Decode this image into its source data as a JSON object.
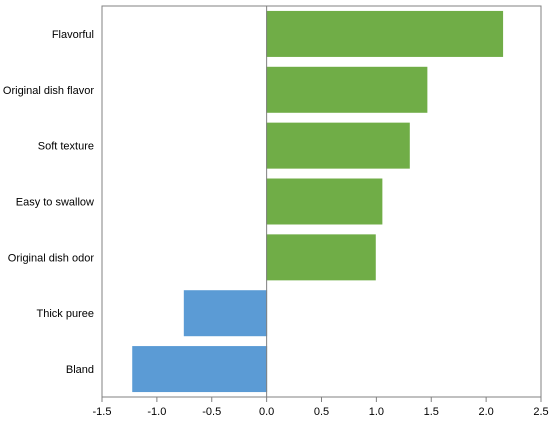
{
  "chart_data": {
    "type": "bar",
    "orientation": "horizontal",
    "title": "",
    "xlabel": "",
    "ylabel": "",
    "categories": [
      "Flavorful",
      "Original dish flavor",
      "Soft texture",
      "Easy to swallow",
      "Original dish odor",
      "Thick puree",
      "Bland"
    ],
    "values": [
      2.15,
      1.46,
      1.3,
      1.05,
      0.99,
      -0.75,
      -1.22
    ],
    "xlim": [
      -1.5,
      2.5
    ],
    "x_ticks": [
      "-1.5",
      "-1.0",
      "-0.5",
      "0.0",
      "0.5",
      "1.0",
      "1.5",
      "2.0",
      "2.5"
    ],
    "grid": false,
    "legend": "none",
    "colors": {
      "positive": "#70ad47",
      "negative": "#5b9bd5",
      "axis": "#808080",
      "text": "#000000"
    }
  }
}
